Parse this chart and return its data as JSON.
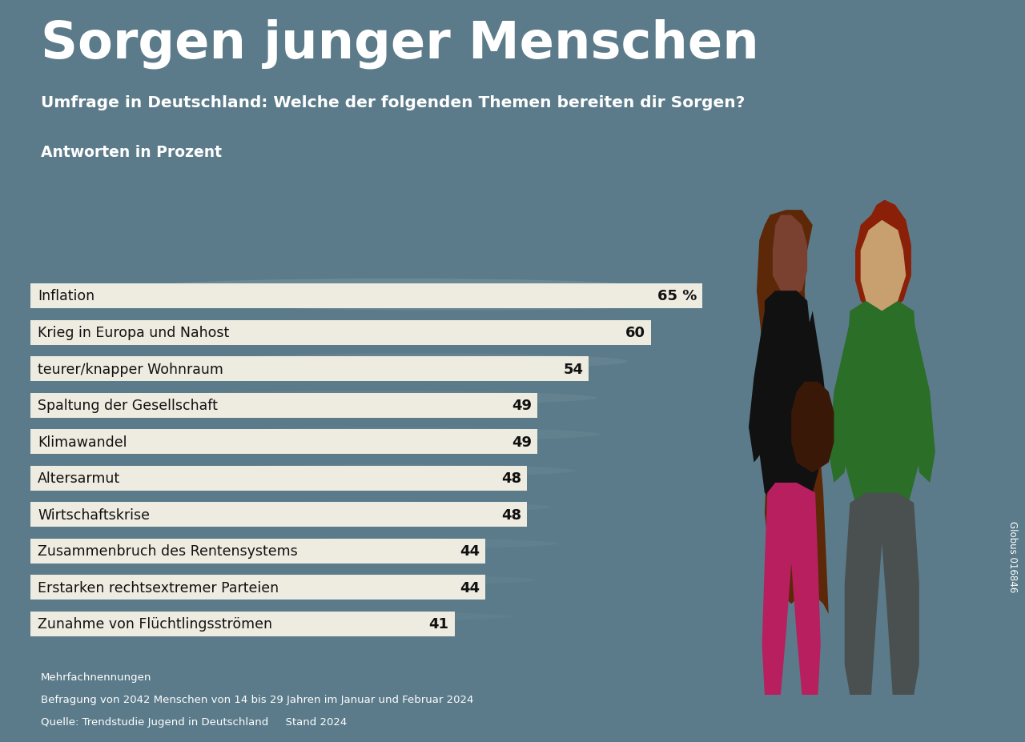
{
  "title": "Sorgen junger Menschen",
  "subtitle": "Umfrage in Deutschland: Welche der folgenden Themen bereiten dir Sorgen?",
  "axis_label": "Antworten in Prozent",
  "categories": [
    "Inflation",
    "Krieg in Europa und Nahost",
    "teurer/knapper Wohnraum",
    "Spaltung der Gesellschaft",
    "Klimawandel",
    "Altersarmut",
    "Wirtschaftskrise",
    "Zusammenbruch des Rentensystems",
    "Erstarken rechtsextremer Parteien",
    "Zunahme von Flüchtlingsströmen"
  ],
  "values": [
    65,
    60,
    54,
    49,
    49,
    48,
    48,
    44,
    44,
    41
  ],
  "value_labels": [
    "65 %",
    "60",
    "54",
    "49",
    "49",
    "48",
    "48",
    "44",
    "44",
    "41"
  ],
  "bg_color": "#5b7b8a",
  "bar_color": "#eeebe0",
  "bar_text_color": "#111111",
  "title_color": "#ffffff",
  "subtitle_color": "#ffffff",
  "axis_label_color": "#ffffff",
  "footnote_color": "#ffffff",
  "footnote_lines": [
    "Mehrfachnennungen",
    "Befragung von 2042 Menschen von 14 bis 29 Jahren im Januar und Februar 2024",
    "Quelle: Trendstudie Jugend in Deutschland     Stand 2024"
  ],
  "globus_text": "Globus 016846",
  "max_value": 68
}
